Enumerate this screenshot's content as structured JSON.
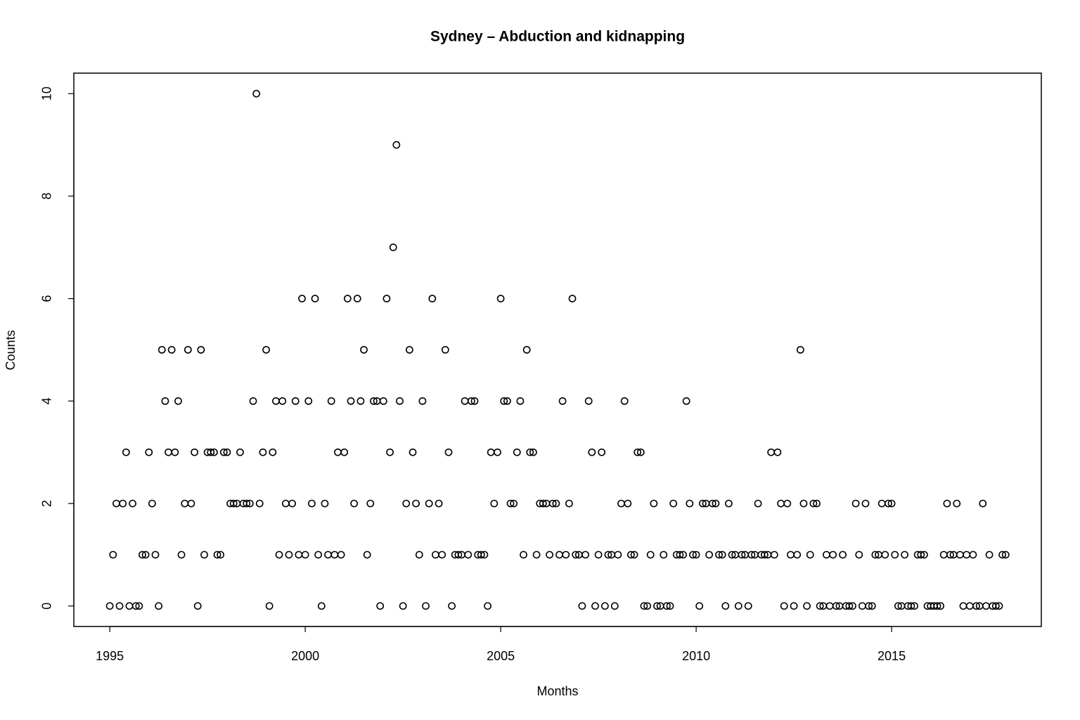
{
  "chart_data": {
    "type": "scatter",
    "title": "Sydney – Abduction and kidnapping",
    "x_label": "Months",
    "y_label": "Counts",
    "color": "#000000",
    "x": [
      1995,
      1995.083,
      1995.167,
      1995.25,
      1995.333,
      1995.417,
      1995.5,
      1995.583,
      1995.667,
      1995.75,
      1995.833,
      1995.917,
      1996,
      1996.083,
      1996.167,
      1996.25,
      1996.333,
      1996.417,
      1996.5,
      1996.583,
      1996.667,
      1996.75,
      1996.833,
      1996.917,
      1997,
      1997.083,
      1997.167,
      1997.25,
      1997.333,
      1997.417,
      1997.5,
      1997.583,
      1997.667,
      1997.75,
      1997.833,
      1997.917,
      1998,
      1998.083,
      1998.167,
      1998.25,
      1998.333,
      1998.417,
      1998.5,
      1998.583,
      1998.667,
      1998.75,
      1998.833,
      1998.917,
      1999,
      1999.083,
      1999.167,
      1999.25,
      1999.333,
      1999.417,
      1999.5,
      1999.583,
      1999.667,
      1999.75,
      1999.833,
      1999.917,
      2000,
      2000.083,
      2000.167,
      2000.25,
      2000.333,
      2000.417,
      2000.5,
      2000.583,
      2000.667,
      2000.75,
      2000.833,
      2000.917,
      2001,
      2001.083,
      2001.167,
      2001.25,
      2001.333,
      2001.417,
      2001.5,
      2001.583,
      2001.667,
      2001.75,
      2001.833,
      2001.917,
      2002,
      2002.083,
      2002.167,
      2002.25,
      2002.333,
      2002.417,
      2002.5,
      2002.583,
      2002.667,
      2002.75,
      2002.833,
      2002.917,
      2003,
      2003.083,
      2003.167,
      2003.25,
      2003.333,
      2003.417,
      2003.5,
      2003.583,
      2003.667,
      2003.75,
      2003.833,
      2003.917,
      2004,
      2004.083,
      2004.167,
      2004.25,
      2004.333,
      2004.417,
      2004.5,
      2004.583,
      2004.667,
      2004.75,
      2004.833,
      2004.917,
      2005,
      2005.083,
      2005.167,
      2005.25,
      2005.333,
      2005.417,
      2005.5,
      2005.583,
      2005.667,
      2005.75,
      2005.833,
      2005.917,
      2006,
      2006.083,
      2006.167,
      2006.25,
      2006.333,
      2006.417,
      2006.5,
      2006.583,
      2006.667,
      2006.75,
      2006.833,
      2006.917,
      2007,
      2007.083,
      2007.167,
      2007.25,
      2007.333,
      2007.417,
      2007.5,
      2007.583,
      2007.667,
      2007.75,
      2007.833,
      2007.917,
      2008,
      2008.083,
      2008.167,
      2008.25,
      2008.333,
      2008.417,
      2008.5,
      2008.583,
      2008.667,
      2008.75,
      2008.833,
      2008.917,
      2009,
      2009.083,
      2009.167,
      2009.25,
      2009.333,
      2009.417,
      2009.5,
      2009.583,
      2009.667,
      2009.75,
      2009.833,
      2009.917,
      2010,
      2010.083,
      2010.167,
      2010.25,
      2010.333,
      2010.417,
      2010.5,
      2010.583,
      2010.667,
      2010.75,
      2010.833,
      2010.917,
      2011,
      2011.083,
      2011.167,
      2011.25,
      2011.333,
      2011.417,
      2011.5,
      2011.583,
      2011.667,
      2011.75,
      2011.833,
      2011.917,
      2012,
      2012.083,
      2012.167,
      2012.25,
      2012.333,
      2012.417,
      2012.5,
      2012.583,
      2012.667,
      2012.75,
      2012.833,
      2012.917,
      2013,
      2013.083,
      2013.167,
      2013.25,
      2013.333,
      2013.417,
      2013.5,
      2013.583,
      2013.667,
      2013.75,
      2013.833,
      2013.917,
      2014,
      2014.083,
      2014.167,
      2014.25,
      2014.333,
      2014.417,
      2014.5,
      2014.583,
      2014.667,
      2014.75,
      2014.833,
      2014.917,
      2015,
      2015.083,
      2015.167,
      2015.25,
      2015.333,
      2015.417,
      2015.5,
      2015.583,
      2015.667,
      2015.75,
      2015.833,
      2015.917,
      2016,
      2016.083,
      2016.167,
      2016.25,
      2016.333,
      2016.417,
      2016.5,
      2016.583,
      2016.667,
      2016.75,
      2016.833,
      2016.917,
      2017,
      2017.083,
      2017.167,
      2017.25,
      2017.333,
      2017.417,
      2017.5,
      2017.583,
      2017.667,
      2017.75,
      2017.833,
      2017.917
    ],
    "values": [
      0,
      1,
      2,
      0,
      2,
      3,
      0,
      2,
      0,
      0,
      1,
      1,
      3,
      2,
      1,
      0,
      5,
      4,
      3,
      5,
      3,
      4,
      1,
      2,
      5,
      2,
      3,
      0,
      5,
      1,
      3,
      3,
      3,
      1,
      1,
      3,
      3,
      2,
      2,
      2,
      3,
      2,
      2,
      2,
      4,
      10,
      2,
      3,
      5,
      0,
      3,
      4,
      1,
      4,
      2,
      1,
      2,
      4,
      1,
      6,
      1,
      4,
      2,
      6,
      1,
      0,
      2,
      1,
      4,
      1,
      3,
      1,
      3,
      6,
      4,
      2,
      6,
      4,
      5,
      1,
      2,
      4,
      4,
      0,
      4,
      6,
      3,
      7,
      9,
      4,
      0,
      2,
      5,
      3,
      2,
      1,
      4,
      0,
      2,
      6,
      1,
      2,
      1,
      5,
      3,
      0,
      1,
      1,
      1,
      4,
      1,
      4,
      4,
      1,
      1,
      1,
      0,
      3,
      2,
      3,
      6,
      4,
      4,
      2,
      2,
      3,
      4,
      1,
      5,
      3,
      3,
      1,
      2,
      2,
      2,
      1,
      2,
      2,
      1,
      4,
      1,
      2,
      6,
      1,
      1,
      0,
      1,
      4,
      3,
      0,
      1,
      3,
      0,
      1,
      1,
      0,
      1,
      2,
      4,
      2,
      1,
      1,
      3,
      3,
      0,
      0,
      1,
      2,
      0,
      0,
      1,
      0,
      0,
      2,
      1,
      1,
      1,
      4,
      2,
      1,
      1,
      0,
      2,
      2,
      1,
      2,
      2,
      1,
      1,
      0,
      2,
      1,
      1,
      0,
      1,
      1,
      0,
      1,
      1,
      2,
      1,
      1,
      1,
      3,
      1,
      3,
      2,
      0,
      2,
      1,
      0,
      1,
      5,
      2,
      0,
      1,
      2,
      2,
      0,
      0,
      1,
      0,
      1,
      0,
      0,
      1,
      0,
      0,
      0,
      2,
      1,
      0,
      2,
      0,
      0,
      1,
      1,
      2,
      1,
      2,
      2,
      1,
      0,
      0,
      1,
      0,
      0,
      0,
      1,
      1,
      1,
      0,
      0,
      0,
      0,
      0,
      1,
      2,
      1,
      1,
      2,
      1,
      0,
      1,
      0,
      1,
      0,
      0,
      2,
      0,
      1,
      0,
      0,
      0,
      1,
      1
    ],
    "xlim": [
      1994.08,
      2018.83
    ],
    "ylim": [
      -0.4,
      10.4
    ],
    "xticks": [
      1995,
      2000,
      2005,
      2010,
      2015
    ],
    "yticks": [
      0,
      2,
      4,
      6,
      8,
      10
    ]
  }
}
